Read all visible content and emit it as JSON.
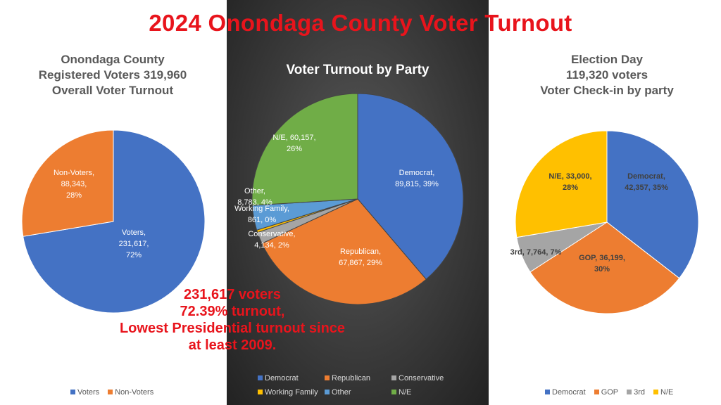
{
  "title": "2024 Onondaga County Voter Turnout",
  "annotation": [
    "231,617 voters",
    "72.39% turnout,",
    "Lowest Presidential turnout since",
    "at least 2009."
  ],
  "chart_data": [
    {
      "type": "pie",
      "title": [
        "Onondaga County",
        "Registered Voters 319,960",
        "Overall Voter Turnout"
      ],
      "categories": [
        "Voters",
        "Non-Voters"
      ],
      "values": [
        231617,
        88343
      ],
      "percent": [
        72,
        28
      ],
      "labels": [
        [
          "Voters,",
          "231,617,",
          "72%"
        ],
        [
          "Non-Voters,",
          "88,343,",
          "28%"
        ]
      ],
      "colors": [
        "#4472c4",
        "#ed7d31"
      ],
      "legend": "bottom"
    },
    {
      "type": "pie",
      "title": [
        "Voter Turnout by Party"
      ],
      "categories": [
        "Democrat",
        "Republican",
        "Conservative",
        "Working Family",
        "Other",
        "N/E"
      ],
      "values": [
        89815,
        67867,
        4134,
        861,
        8783,
        60157
      ],
      "percent": [
        39,
        29,
        2,
        0,
        4,
        26
      ],
      "labels": [
        [
          "Democrat,",
          "89,815, 39%"
        ],
        [
          "Republican,",
          "67,867, 29%"
        ],
        [
          "Conservative,",
          "4,134, 2%"
        ],
        [
          "Working Family,",
          "861, 0%"
        ],
        [
          "Other,",
          "8,783, 4%"
        ],
        [
          "N/E, 60,157,",
          "26%"
        ]
      ],
      "colors": [
        "#4472c4",
        "#ed7d31",
        "#a5a5a5",
        "#ffc000",
        "#5b9bd5",
        "#70ad47"
      ],
      "legend": "bottom"
    },
    {
      "type": "pie",
      "title": [
        "Election Day",
        "119,320 voters",
        "Voter Check-in by party"
      ],
      "categories": [
        "Democrat",
        "GOP",
        "3rd",
        "N/E"
      ],
      "values": [
        42357,
        36199,
        7764,
        33000
      ],
      "percent": [
        35,
        30,
        7,
        28
      ],
      "labels": [
        [
          "Democrat,",
          "42,357, 35%"
        ],
        [
          "GOP, 36,199,",
          "30%"
        ],
        [
          "3rd, 7,764, 7%"
        ],
        [
          "N/E, 33,000,",
          "28%"
        ]
      ],
      "colors": [
        "#4472c4",
        "#ed7d31",
        "#a5a5a5",
        "#ffc000"
      ],
      "legend": "bottom"
    }
  ]
}
